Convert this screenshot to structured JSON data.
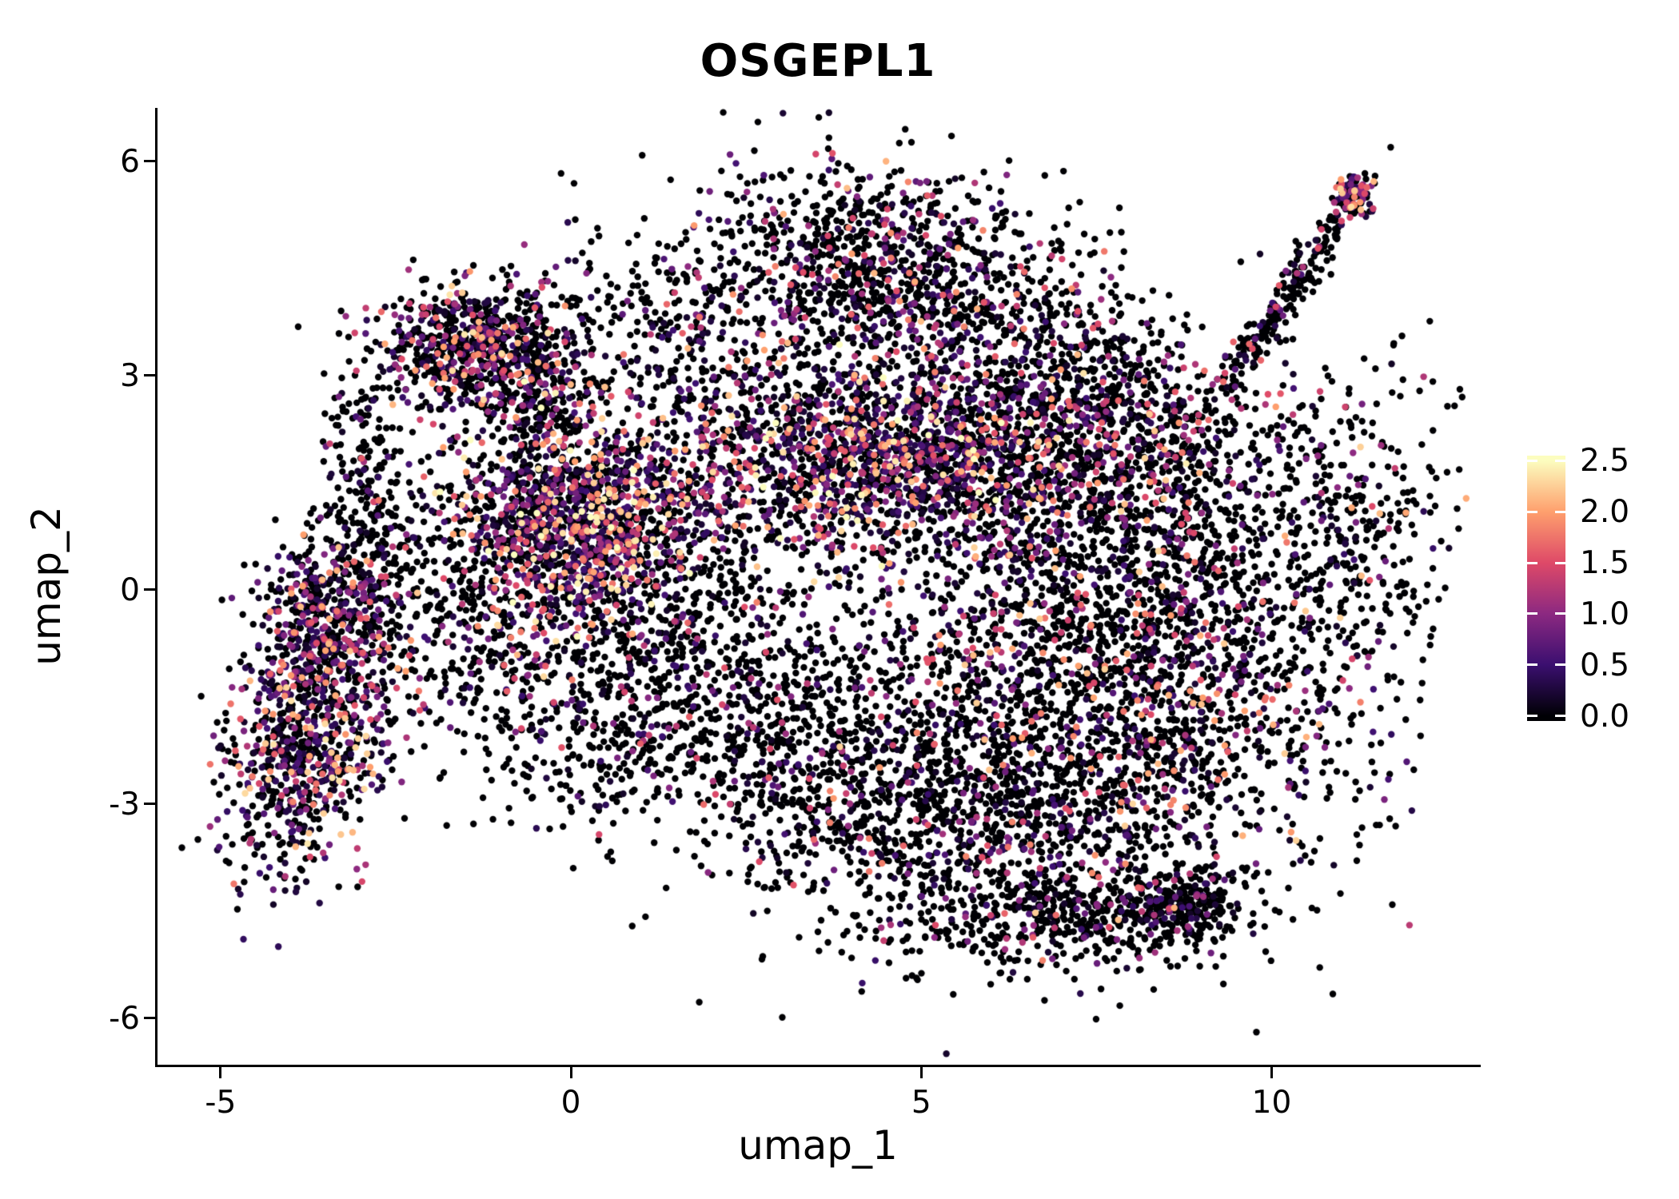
{
  "chart_data": {
    "type": "scatter",
    "title": "OSGEPL1",
    "xlabel": "umap_1",
    "ylabel": "umap_2",
    "xlim": [
      -5.9,
      12.95
    ],
    "ylim": [
      -6.65,
      6.75
    ],
    "x_ticks": [
      -5,
      0,
      5,
      10
    ],
    "y_ticks": [
      6,
      3,
      0,
      -3,
      -6
    ],
    "grid": false,
    "legend_position": "right",
    "point_radius_px": 4.2,
    "seed": 42,
    "colorbar": {
      "label_values": [
        "2.5",
        "2.0",
        "1.5",
        "1.0",
        "0.5",
        "0.0"
      ],
      "domain": [
        0,
        2.5
      ],
      "bar_domain": [
        -0.05,
        2.55
      ],
      "stops": [
        {
          "value": 0.0,
          "color": "#000004"
        },
        {
          "value": 0.5,
          "color": "#3B0F70"
        },
        {
          "value": 1.0,
          "color": "#8C2981"
        },
        {
          "value": 1.5,
          "color": "#DE4968"
        },
        {
          "value": 2.0,
          "color": "#FE9F6D"
        },
        {
          "value": 2.5,
          "color": "#FCFDBF"
        }
      ]
    },
    "clusters": [
      {
        "name": "left-blob",
        "cx": -3.75,
        "cy": -1.9,
        "sx": 0.55,
        "sy": 1.05,
        "rot": -12,
        "n": 950,
        "zero_frac": 0.5,
        "max_expr": 2.4
      },
      {
        "name": "left-blob-top",
        "cx": -3.4,
        "cy": -0.15,
        "sx": 0.45,
        "sy": 0.55,
        "rot": 0,
        "n": 300,
        "zero_frac": 0.55,
        "max_expr": 2.2
      },
      {
        "name": "left-bridge",
        "cx": -1.75,
        "cy": -0.35,
        "sx": 0.75,
        "sy": 0.9,
        "rot": 0,
        "n": 270,
        "zero_frac": 0.8,
        "max_expr": 2.0
      },
      {
        "name": "left-arm",
        "cx": -2.85,
        "cy": 1.3,
        "sx": 0.3,
        "sy": 0.95,
        "rot": 8,
        "n": 220,
        "zero_frac": 0.8,
        "max_expr": 1.6
      },
      {
        "name": "topleft-cluster",
        "cx": -1.45,
        "cy": 3.45,
        "sx": 0.7,
        "sy": 0.42,
        "rot": 10,
        "n": 700,
        "zero_frac": 0.6,
        "max_expr": 2.4
      },
      {
        "name": "topleft-tail",
        "cx": -0.55,
        "cy": 2.75,
        "sx": 0.45,
        "sy": 0.5,
        "rot": -30,
        "n": 260,
        "zero_frac": 0.7,
        "max_expr": 2.0
      },
      {
        "name": "midleft-dense",
        "cx": 0.1,
        "cy": 0.85,
        "sx": 0.95,
        "sy": 0.8,
        "rot": 0,
        "n": 1600,
        "zero_frac": 0.48,
        "max_expr": 2.6
      },
      {
        "name": "midleft-south",
        "cx": 0.4,
        "cy": -1.7,
        "sx": 1.15,
        "sy": 0.8,
        "rot": -10,
        "n": 500,
        "zero_frac": 0.8,
        "max_expr": 1.8
      },
      {
        "name": "center-gap-sparse",
        "cx": 1.9,
        "cy": -0.3,
        "sx": 1.0,
        "sy": 0.95,
        "rot": 0,
        "n": 260,
        "zero_frac": 0.82,
        "max_expr": 1.8
      },
      {
        "name": "center-band",
        "cx": 4.35,
        "cy": 1.85,
        "sx": 1.75,
        "sy": 0.7,
        "rot": 3,
        "n": 1900,
        "zero_frac": 0.5,
        "max_expr": 2.6
      },
      {
        "name": "top-lobe",
        "cx": 4.3,
        "cy": 4.45,
        "sx": 1.25,
        "sy": 0.8,
        "rot": -5,
        "n": 1050,
        "zero_frac": 0.68,
        "max_expr": 2.2
      },
      {
        "name": "top-bridge",
        "cx": 1.6,
        "cy": 3.5,
        "sx": 1.1,
        "sy": 0.75,
        "rot": -15,
        "n": 320,
        "zero_frac": 0.8,
        "max_expr": 1.8
      },
      {
        "name": "upper-right-slope",
        "cx": 6.9,
        "cy": 3.4,
        "sx": 1.1,
        "sy": 0.6,
        "rot": -25,
        "n": 330,
        "zero_frac": 0.78,
        "max_expr": 2.0
      },
      {
        "name": "right-upper",
        "cx": 7.6,
        "cy": 2.0,
        "sx": 1.35,
        "sy": 0.85,
        "rot": -8,
        "n": 750,
        "zero_frac": 0.72,
        "max_expr": 2.2
      },
      {
        "name": "right-mass",
        "cx": 7.9,
        "cy": -0.9,
        "sx": 1.75,
        "sy": 1.65,
        "rot": 0,
        "n": 2700,
        "zero_frac": 0.72,
        "max_expr": 2.3
      },
      {
        "name": "bottom-mass",
        "cx": 5.2,
        "cy": -3.1,
        "sx": 1.6,
        "sy": 0.95,
        "rot": -8,
        "n": 1150,
        "zero_frac": 0.8,
        "max_expr": 2.0
      },
      {
        "name": "mid-south-bridge",
        "cx": 2.9,
        "cy": -1.9,
        "sx": 1.1,
        "sy": 0.85,
        "rot": 0,
        "n": 420,
        "zero_frac": 0.85,
        "max_expr": 1.6
      },
      {
        "name": "bottom-rim",
        "cx": 7.5,
        "cy": -4.55,
        "sx": 1.15,
        "sy": 0.33,
        "rot": 5,
        "n": 380,
        "zero_frac": 0.82,
        "max_expr": 1.8
      },
      {
        "name": "bottom-clump",
        "cx": 8.75,
        "cy": -4.45,
        "sx": 0.33,
        "sy": 0.25,
        "rot": 0,
        "n": 200,
        "zero_frac": 0.8,
        "max_expr": 1.6
      },
      {
        "name": "topright-arm",
        "cx": 10.2,
        "cy": 4.1,
        "sx": 1.05,
        "sy": 0.13,
        "rot": 55,
        "n": 230,
        "zero_frac": 0.8,
        "max_expr": 2.0
      },
      {
        "name": "topright-tip",
        "cx": 11.15,
        "cy": 5.5,
        "sx": 0.14,
        "sy": 0.14,
        "rot": 0,
        "n": 100,
        "zero_frac": 0.45,
        "max_expr": 2.4
      },
      {
        "name": "right-edge",
        "cx": 11.1,
        "cy": 0.8,
        "sx": 0.75,
        "sy": 1.3,
        "rot": 0,
        "n": 300,
        "zero_frac": 0.85,
        "max_expr": 1.6
      }
    ]
  }
}
